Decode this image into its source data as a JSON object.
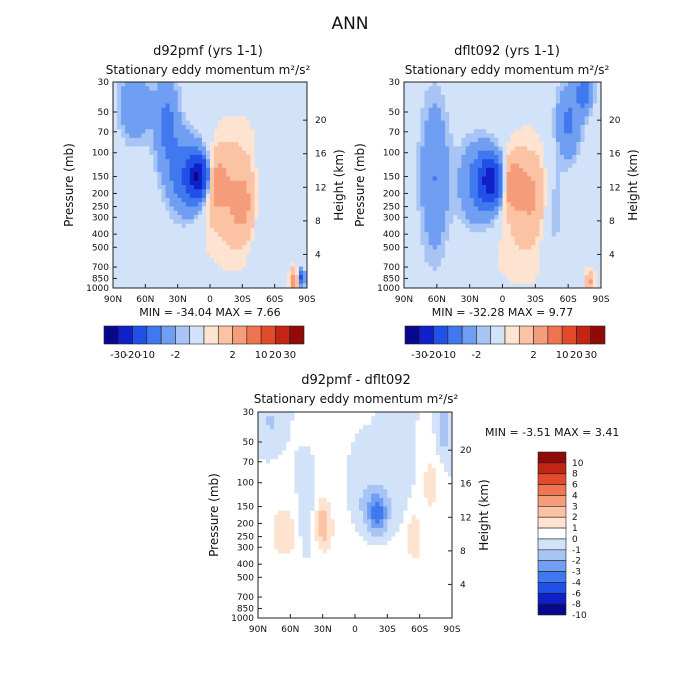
{
  "page_title": "ANN",
  "chart_data": [
    {
      "type": "heatmap",
      "title": "d92pmf (yrs 1-1)",
      "subtitle": "Stationary eddy momentum  m²/s²",
      "xlabel": "",
      "ylabel": "Pressure (mb)",
      "ylabel_right": "Height (km)",
      "x_ticks": [
        "90N",
        "60N",
        "30N",
        "0",
        "30S",
        "60S",
        "90S"
      ],
      "y_ticks": [
        "30",
        "50",
        "70",
        "100",
        "150",
        "200",
        "250",
        "300",
        "400",
        "500",
        "700",
        "850",
        "1000"
      ],
      "y_right_ticks": [
        "20",
        "16",
        "12",
        "8",
        "4"
      ],
      "min_text": "MIN = -34.04   MAX =   7.66",
      "colorbar_orientation": "horizontal",
      "colorbar_labels": [
        "-30",
        "-20",
        "-10",
        "-2",
        "2",
        "10",
        "20",
        "30"
      ],
      "colors": [
        "#08088f",
        "#1020c8",
        "#2050e8",
        "#4078f0",
        "#6f9ef2",
        "#a7c4f4",
        "#d2e2f8",
        "#fde3d0",
        "#fbc2a4",
        "#f59c7a",
        "#ee7452",
        "#e24a2c",
        "#c42414",
        "#900a08"
      ],
      "values_min": -34.04,
      "values_max": 7.66,
      "blobs": [
        {
          "x": -11,
          "y": 150,
          "v": -26,
          "sx": 6,
          "sy": 0.22
        },
        {
          "x": -20,
          "y": 150,
          "v": -10,
          "sx": 12,
          "sy": 0.45
        },
        {
          "x": 5,
          "y": 170,
          "v": 6,
          "sx": 8,
          "sy": 0.32
        },
        {
          "x": 33,
          "y": 240,
          "v": 5,
          "sx": 10,
          "sy": 0.4
        },
        {
          "x": -40,
          "y": 60,
          "v": -6,
          "sx": 8,
          "sy": 0.55
        },
        {
          "x": -70,
          "y": 45,
          "v": -5,
          "sx": 10,
          "sy": 0.4
        },
        {
          "x": 45,
          "y": 250,
          "v": -4,
          "sx": 9,
          "sy": 0.6
        },
        {
          "x": 25,
          "y": 200,
          "v": 3,
          "sx": 30,
          "sy": 0.9
        },
        {
          "x": 78,
          "y": 900,
          "v": 6,
          "sx": 3,
          "sy": 0.15
        },
        {
          "x": 85,
          "y": 850,
          "v": -12,
          "sx": 2,
          "sy": 0.1
        }
      ]
    },
    {
      "type": "heatmap",
      "title": "dflt092 (yrs 1-1)",
      "subtitle": "Stationary eddy momentum  m²/s²",
      "xlabel": "",
      "ylabel": "Pressure (mb)",
      "ylabel_right": "Height (km)",
      "x_ticks": [
        "90N",
        "60N",
        "30N",
        "0",
        "30S",
        "60S",
        "90S"
      ],
      "y_ticks": [
        "30",
        "50",
        "70",
        "100",
        "150",
        "200",
        "250",
        "300",
        "400",
        "500",
        "700",
        "850",
        "1000"
      ],
      "y_right_ticks": [
        "20",
        "16",
        "12",
        "8",
        "4"
      ],
      "min_text": "MIN = -32.28   MAX =   9.77",
      "colorbar_orientation": "horizontal",
      "colorbar_labels": [
        "-30",
        "-20",
        "-10",
        "-2",
        "2",
        "10",
        "20",
        "30"
      ],
      "colors": [
        "#08088f",
        "#1020c8",
        "#2050e8",
        "#4078f0",
        "#6f9ef2",
        "#a7c4f4",
        "#d2e2f8",
        "#fde3d0",
        "#fbc2a4",
        "#f59c7a",
        "#ee7452",
        "#e24a2c",
        "#c42414",
        "#900a08"
      ],
      "values_min": -32.28,
      "values_max": 9.77,
      "blobs": [
        {
          "x": -10,
          "y": 160,
          "v": -22,
          "sx": 7,
          "sy": 0.25
        },
        {
          "x": -18,
          "y": 170,
          "v": -8,
          "sx": 14,
          "sy": 0.5
        },
        {
          "x": 8,
          "y": 170,
          "v": 8,
          "sx": 8,
          "sy": 0.3
        },
        {
          "x": 30,
          "y": 210,
          "v": 4,
          "sx": 10,
          "sy": 0.4
        },
        {
          "x": -62,
          "y": 150,
          "v": -5,
          "sx": 9,
          "sy": 0.9
        },
        {
          "x": 60,
          "y": 60,
          "v": -6,
          "sx": 8,
          "sy": 0.45
        },
        {
          "x": 75,
          "y": 35,
          "v": -8,
          "sx": 5,
          "sy": 0.25
        },
        {
          "x": 45,
          "y": 250,
          "v": -4,
          "sx": 9,
          "sy": 0.6
        },
        {
          "x": 20,
          "y": 250,
          "v": 2.5,
          "sx": 30,
          "sy": 1.0
        },
        {
          "x": 80,
          "y": 900,
          "v": 5,
          "sx": 3,
          "sy": 0.15
        }
      ]
    },
    {
      "type": "heatmap",
      "title": "d92pmf - dflt092",
      "subtitle": "Stationary eddy momentum  m²/s²",
      "xlabel": "",
      "ylabel": "Pressure (mb)",
      "ylabel_right": "Height (km)",
      "x_ticks": [
        "90N",
        "60N",
        "30N",
        "0",
        "30S",
        "60S",
        "90S"
      ],
      "y_ticks": [
        "30",
        "50",
        "70",
        "100",
        "150",
        "200",
        "250",
        "300",
        "400",
        "500",
        "700",
        "850",
        "1000"
      ],
      "y_right_ticks": [
        "20",
        "16",
        "12",
        "8",
        "4"
      ],
      "min_text": "MIN =   -3.51   MAX =   3.41",
      "colorbar_orientation": "vertical",
      "colorbar_labels": [
        "10",
        "8",
        "6",
        "4",
        "3",
        "2",
        "1",
        "0",
        "-1",
        "-2",
        "-3",
        "-4",
        "-6",
        "-8",
        "-10"
      ],
      "colors": [
        "#900a08",
        "#c42414",
        "#e24a2c",
        "#ee7452",
        "#f59c7a",
        "#fbc2a4",
        "#fde3d0",
        "#ffffff",
        "#d2e2f8",
        "#a7c4f4",
        "#6f9ef2",
        "#4078f0",
        "#2050e8",
        "#1020c8",
        "#08088f"
      ],
      "values_min": -3.51,
      "values_max": 3.41,
      "blobs": [
        {
          "x": 22,
          "y": 170,
          "v": -3.2,
          "sx": 6,
          "sy": 0.25
        },
        {
          "x": 12,
          "y": 150,
          "v": -1.5,
          "sx": 10,
          "sy": 0.4
        },
        {
          "x": -30,
          "y": 200,
          "v": 2.6,
          "sx": 6,
          "sy": 0.3
        },
        {
          "x": -65,
          "y": 230,
          "v": 1.8,
          "sx": 10,
          "sy": 0.35
        },
        {
          "x": 55,
          "y": 250,
          "v": 1.6,
          "sx": 6,
          "sy": 0.35
        },
        {
          "x": -45,
          "y": 200,
          "v": -1.2,
          "sx": 7,
          "sy": 0.4
        },
        {
          "x": 70,
          "y": 100,
          "v": 1.5,
          "sx": 6,
          "sy": 0.4
        },
        {
          "x": 82,
          "y": 40,
          "v": -2,
          "sx": 4,
          "sy": 0.3
        },
        {
          "x": 0,
          "y": 500,
          "v": 0.8,
          "sx": 30,
          "sy": 0.8
        },
        {
          "x": -78,
          "y": 35,
          "v": -1.2,
          "sx": 5,
          "sy": 0.2
        },
        {
          "x": 40,
          "y": 100,
          "v": -0.8,
          "sx": 8,
          "sy": 0.5
        }
      ]
    }
  ]
}
